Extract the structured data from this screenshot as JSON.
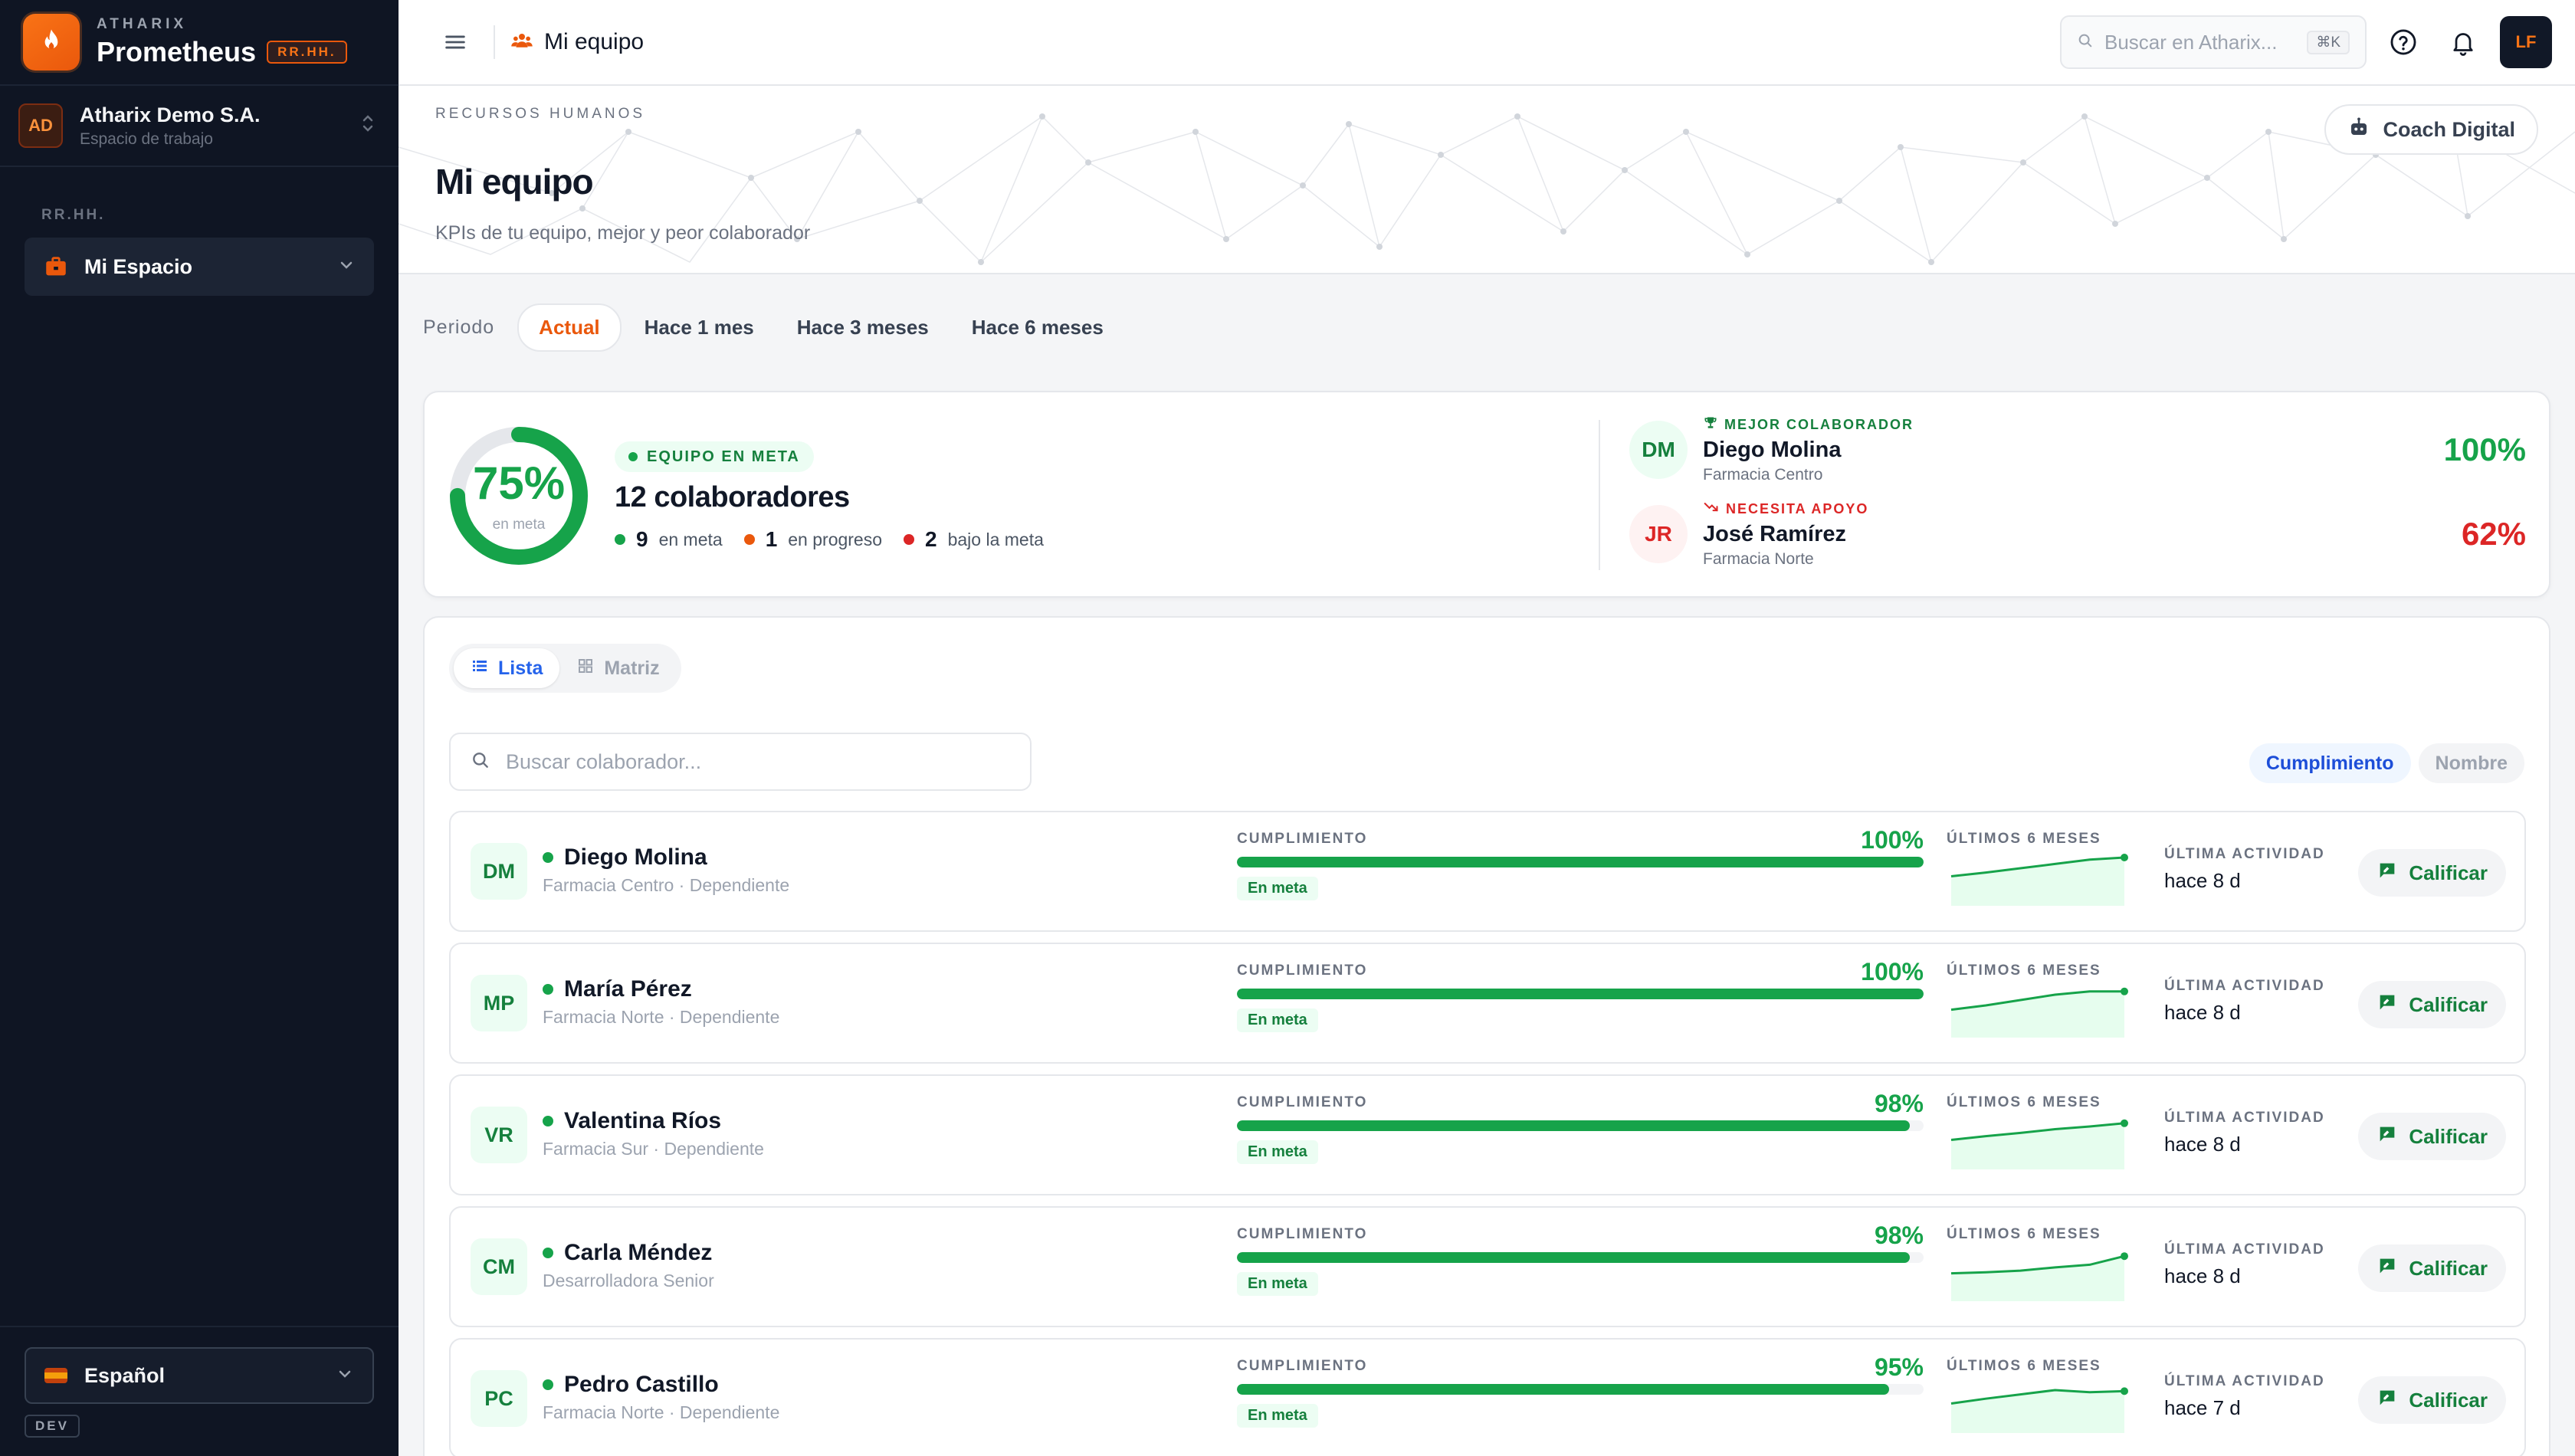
{
  "sidebar": {
    "brand_kicker": "ATHARIX",
    "brand_name": "Prometheus",
    "brand_badge": "RR.HH.",
    "workspace": {
      "initials": "AD",
      "name": "Atharix Demo S.A.",
      "subtitle": "Espacio de trabajo"
    },
    "section_label": "RR.HH.",
    "nav_item": "Mi Espacio",
    "language": "Español",
    "env": "DEV"
  },
  "topbar": {
    "title": "Mi equipo",
    "search_placeholder": "Buscar en Atharix...",
    "shortcut": "⌘K",
    "user_initials": "LF"
  },
  "hero": {
    "kicker": "RECURSOS HUMANOS",
    "title": "Mi equipo",
    "subtitle": "KPIs de tu equipo, mejor y peor colaborador",
    "coach_label": "Coach Digital"
  },
  "period": {
    "label": "Periodo",
    "tabs": [
      "Actual",
      "Hace 1 mes",
      "Hace 3 meses",
      "Hace 6 meses"
    ],
    "active": "Actual"
  },
  "summary": {
    "ring_pct": "75%",
    "ring_value": 0.75,
    "ring_sub": "en meta",
    "badge": "EQUIPO EN META",
    "count": "12 colaboradores",
    "stats": [
      {
        "value": "9",
        "label": "en meta",
        "color": "#16a34a"
      },
      {
        "value": "1",
        "label": "en progreso",
        "color": "#ea580c"
      },
      {
        "value": "2",
        "label": "bajo la meta",
        "color": "#dc2626"
      }
    ],
    "best": {
      "kicker": "MEJOR COLABORADOR",
      "initials": "DM",
      "name": "Diego Molina",
      "location": "Farmacia Centro",
      "pct": "100%"
    },
    "worst": {
      "kicker": "NECESITA APOYO",
      "initials": "JR",
      "name": "José Ramírez",
      "location": "Farmacia Norte",
      "pct": "62%"
    }
  },
  "list": {
    "view_tabs": [
      "Lista",
      "Matriz"
    ],
    "search_placeholder": "Buscar colaborador...",
    "sort": [
      "Cumplimiento",
      "Nombre"
    ],
    "comp_label": "CUMPLIMIENTO",
    "spark_label": "ÚLTIMOS 6 MESES",
    "activity_label": "ÚLTIMA ACTIVIDAD",
    "rate_label": "Calificar",
    "rows": [
      {
        "initials": "DM",
        "name": "Diego Molina",
        "sub": "Farmacia Centro · Dependiente",
        "pct": "100%",
        "value": 100,
        "status": "En meta",
        "activity": "hace 8 d",
        "trend": [
          55,
          62,
          70,
          78,
          86,
          90
        ]
      },
      {
        "initials": "MP",
        "name": "María Pérez",
        "sub": "Farmacia Norte · Dependiente",
        "pct": "100%",
        "value": 100,
        "status": "En meta",
        "activity": "hace 8 d",
        "trend": [
          52,
          60,
          70,
          80,
          86,
          86
        ]
      },
      {
        "initials": "VR",
        "name": "Valentina Ríos",
        "sub": "Farmacia Sur · Dependiente",
        "pct": "98%",
        "value": 98,
        "status": "En meta",
        "activity": "hace 8 d",
        "trend": [
          55,
          62,
          68,
          75,
          80,
          86
        ]
      },
      {
        "initials": "CM",
        "name": "Carla Méndez",
        "sub": "Desarrolladora Senior",
        "pct": "98%",
        "value": 98,
        "status": "En meta",
        "activity": "hace 8 d",
        "trend": [
          52,
          54,
          57,
          63,
          68,
          84
        ]
      },
      {
        "initials": "PC",
        "name": "Pedro Castillo",
        "sub": "Farmacia Norte · Dependiente",
        "pct": "95%",
        "value": 95,
        "status": "En meta",
        "activity": "hace 7 d",
        "trend": [
          55,
          64,
          72,
          80,
          76,
          78
        ]
      }
    ]
  }
}
